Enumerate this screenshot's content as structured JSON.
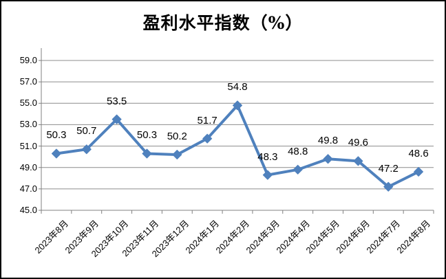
{
  "window": {
    "title": "盈利水平指数（%）"
  },
  "colors": {
    "line": "#4F81BD",
    "marker": "#4F81BD",
    "grid": "#8C8C8C",
    "axis": "#808080",
    "text": "#000000",
    "background": "#FFFFFF",
    "frame_border": "#000000"
  },
  "chart_data": {
    "type": "line",
    "title": "盈利水平指数（%）",
    "categories": [
      "2023年8月",
      "2023年9月",
      "2023年10月",
      "2023年11月",
      "2023年12月",
      "2024年1月",
      "2024年2月",
      "2024年3月",
      "2024年4月",
      "2024年5月",
      "2024年6月",
      "2024年7月",
      "2024年8月"
    ],
    "values": [
      50.3,
      50.7,
      53.5,
      50.3,
      50.2,
      51.7,
      54.8,
      48.3,
      48.8,
      49.8,
      49.6,
      47.2,
      48.6
    ],
    "data_labels": [
      "50.3",
      "50.7",
      "53.5",
      "50.3",
      "50.2",
      "51.7",
      "54.8",
      "48.3",
      "48.8",
      "49.8",
      "49.6",
      "47.2",
      "48.6"
    ],
    "xlabel": "",
    "ylabel": "",
    "ylim": [
      45.0,
      59.0
    ],
    "y_step": 2.0,
    "y_tick_labels": [
      "45.0",
      "47.0",
      "49.0",
      "51.0",
      "53.0",
      "55.0",
      "57.0",
      "59.0"
    ],
    "grid": true,
    "legend": "none",
    "marker_shape": "diamond",
    "x_label_rotation_deg": 45
  }
}
